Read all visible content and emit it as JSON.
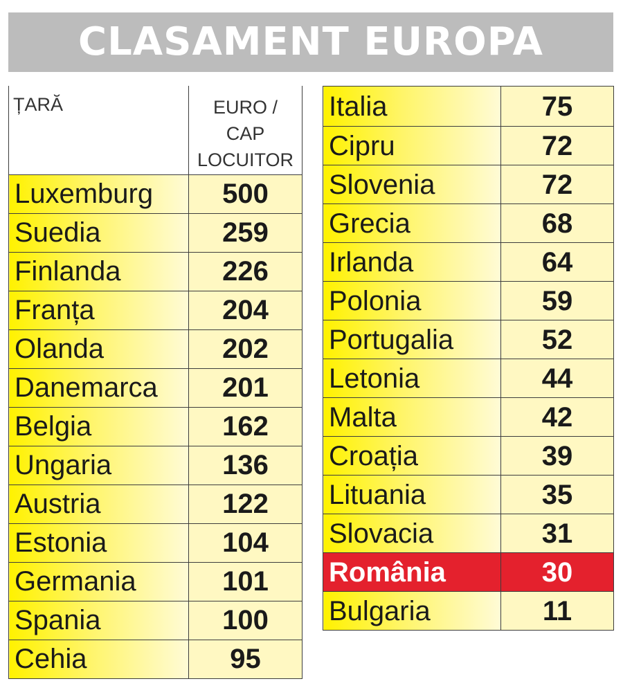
{
  "title": "CLASAMENT EUROPA",
  "header": {
    "country": "ȚARĂ",
    "value_line1": "EURO /",
    "value_line2": "CAP",
    "value_line3": "LOCUITOR"
  },
  "colors": {
    "row_fill": "#fff200",
    "highlight": "#e4212d",
    "title_bar": "#bcbcbc"
  },
  "chart_data": {
    "type": "table",
    "title": "CLASAMENT EUROPA",
    "columns": [
      "ȚARĂ",
      "EURO / CAP LOCUITOR"
    ],
    "highlighted": "România",
    "rows": [
      {
        "country": "Luxemburg",
        "value": 500
      },
      {
        "country": "Suedia",
        "value": 259
      },
      {
        "country": "Finlanda",
        "value": 226
      },
      {
        "country": "Franța",
        "value": 204
      },
      {
        "country": "Olanda",
        "value": 202
      },
      {
        "country": "Danemarca",
        "value": 201
      },
      {
        "country": "Belgia",
        "value": 162
      },
      {
        "country": "Ungaria",
        "value": 136
      },
      {
        "country": "Austria",
        "value": 122
      },
      {
        "country": "Estonia",
        "value": 104
      },
      {
        "country": "Germania",
        "value": 101
      },
      {
        "country": "Spania",
        "value": 100
      },
      {
        "country": "Cehia",
        "value": 95
      },
      {
        "country": "Italia",
        "value": 75
      },
      {
        "country": "Cipru",
        "value": 72
      },
      {
        "country": "Slovenia",
        "value": 72
      },
      {
        "country": "Grecia",
        "value": 68
      },
      {
        "country": "Irlanda",
        "value": 64
      },
      {
        "country": "Polonia",
        "value": 59
      },
      {
        "country": "Portugalia",
        "value": 52
      },
      {
        "country": "Letonia",
        "value": 44
      },
      {
        "country": "Malta",
        "value": 42
      },
      {
        "country": "Croația",
        "value": 39
      },
      {
        "country": "Lituania",
        "value": 35
      },
      {
        "country": "Slovacia",
        "value": 31
      },
      {
        "country": "România",
        "value": 30
      },
      {
        "country": "Bulgaria",
        "value": 11
      }
    ]
  }
}
